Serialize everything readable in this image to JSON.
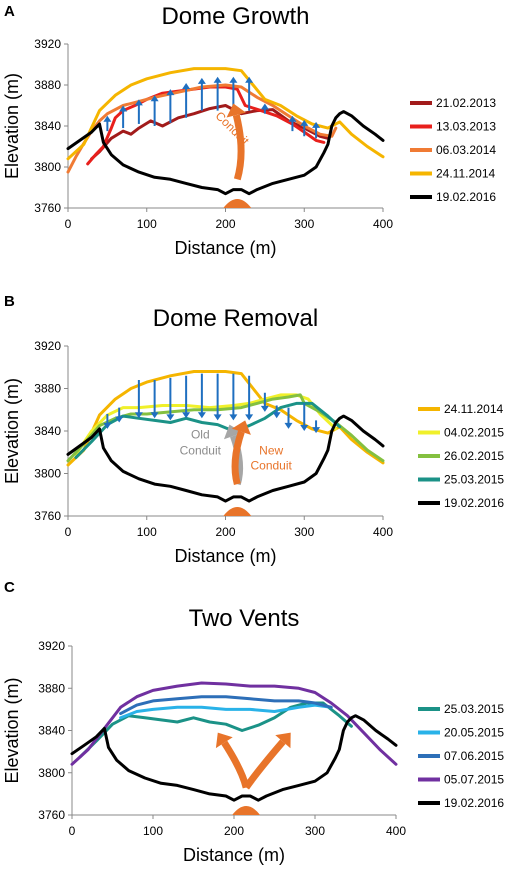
{
  "chart_data": [
    {
      "panel": "A",
      "type": "line",
      "title": "Dome Growth",
      "xlabel": "Distance (m)",
      "ylabel": "Elevation (m)",
      "xlim": [
        0,
        400
      ],
      "ylim": [
        3760,
        3920
      ],
      "xticks": [
        0,
        100,
        200,
        300,
        400
      ],
      "yticks": [
        3760,
        3800,
        3840,
        3880,
        3920
      ],
      "grid": false,
      "legend_position": "right",
      "annotations": [
        {
          "text": "Conduit",
          "x": 205,
          "y": 3835,
          "color": "#e8742a",
          "rotate": 45
        }
      ],
      "arrows": [
        {
          "style": "blue-up",
          "x": [
            50,
            70,
            90,
            110,
            130,
            150,
            170,
            190,
            210,
            230,
            250,
            285,
            300,
            315
          ],
          "from": [
            3835,
            3838,
            3842,
            3840,
            3843,
            3848,
            3855,
            3855,
            3855,
            3855,
            3852,
            3835,
            3830,
            3828
          ],
          "to": [
            3850,
            3860,
            3866,
            3870,
            3876,
            3882,
            3887,
            3888,
            3888,
            3888,
            3862,
            3850,
            3846,
            3844
          ]
        },
        {
          "style": "orange-thick",
          "x": [
            210
          ],
          "from": [
            3788
          ],
          "to": [
            3862
          ]
        }
      ],
      "series": [
        {
          "name": "21.02.2013",
          "color": "#a21b1b",
          "x": [
            30,
            40,
            55,
            70,
            80,
            90,
            105,
            120,
            140,
            160,
            180,
            200,
            210,
            220,
            240,
            260,
            280,
            300,
            320,
            330
          ],
          "y": [
            3808,
            3815,
            3828,
            3835,
            3832,
            3838,
            3845,
            3840,
            3848,
            3852,
            3857,
            3860,
            3856,
            3852,
            3855,
            3856,
            3845,
            3838,
            3830,
            3828
          ]
        },
        {
          "name": "13.03.2013",
          "color": "#e8201c",
          "x": [
            25,
            35,
            45,
            55,
            60,
            70,
            85,
            100,
            120,
            150,
            180,
            200,
            215,
            225,
            245,
            265,
            285,
            300,
            315,
            325
          ],
          "y": [
            3803,
            3812,
            3820,
            3838,
            3848,
            3855,
            3860,
            3866,
            3872,
            3875,
            3878,
            3878,
            3876,
            3860,
            3855,
            3850,
            3842,
            3834,
            3826,
            3824
          ]
        },
        {
          "name": "06.03.2014",
          "color": "#f07b34",
          "x": [
            0,
            10,
            20,
            30,
            40,
            50,
            70,
            90,
            110,
            140,
            170,
            200,
            220,
            240,
            260,
            280,
            300,
            320,
            335,
            340
          ],
          "y": [
            3795,
            3810,
            3823,
            3835,
            3845,
            3852,
            3860,
            3864,
            3868,
            3873,
            3878,
            3880,
            3878,
            3868,
            3860,
            3850,
            3840,
            3832,
            3830,
            3838
          ]
        },
        {
          "name": "24.11.2014",
          "color": "#f5b500",
          "x": [
            0,
            20,
            40,
            60,
            80,
            100,
            130,
            160,
            200,
            220,
            235,
            250,
            270,
            290,
            310,
            330,
            345,
            360,
            380,
            400
          ],
          "y": [
            3808,
            3822,
            3855,
            3870,
            3880,
            3886,
            3892,
            3896,
            3896,
            3894,
            3880,
            3866,
            3860,
            3850,
            3842,
            3838,
            3844,
            3832,
            3820,
            3810
          ]
        },
        {
          "name": "19.02.2016",
          "color": "#000000",
          "x": [
            0,
            15,
            30,
            40,
            45,
            55,
            70,
            90,
            110,
            130,
            150,
            170,
            190,
            200,
            210,
            220,
            230,
            240,
            260,
            280,
            300,
            315,
            325,
            330,
            335,
            340,
            345,
            350,
            360,
            375,
            390,
            400
          ],
          "y": [
            3818,
            3826,
            3834,
            3842,
            3824,
            3812,
            3802,
            3795,
            3790,
            3788,
            3784,
            3780,
            3778,
            3774,
            3778,
            3778,
            3774,
            3778,
            3784,
            3788,
            3792,
            3800,
            3814,
            3822,
            3840,
            3848,
            3852,
            3854,
            3850,
            3840,
            3832,
            3826
          ]
        }
      ]
    },
    {
      "panel": "B",
      "type": "line",
      "title": "Dome Removal",
      "xlabel": "Distance (m)",
      "ylabel": "Elevation (m)",
      "xlim": [
        0,
        400
      ],
      "ylim": [
        3760,
        3920
      ],
      "xticks": [
        0,
        100,
        200,
        300,
        400
      ],
      "yticks": [
        3760,
        3800,
        3840,
        3880,
        3920
      ],
      "grid": false,
      "legend_position": "right",
      "annotations": [
        {
          "text": "Old",
          "x": 168,
          "y": 3833,
          "color": "#8c8c8c",
          "rotate": 0
        },
        {
          "text": "Conduit",
          "x": 168,
          "y": 3818,
          "color": "#8c8c8c",
          "rotate": 0
        },
        {
          "text": "New",
          "x": 258,
          "y": 3818,
          "color": "#e8742a",
          "rotate": 0
        },
        {
          "text": "Conduit",
          "x": 258,
          "y": 3804,
          "color": "#e8742a",
          "rotate": 0
        }
      ],
      "arrows": [
        {
          "style": "blue-down",
          "x": [
            50,
            65,
            90,
            110,
            130,
            150,
            170,
            190,
            210,
            230,
            250,
            265,
            280,
            300,
            315
          ],
          "from": [
            3856,
            3862,
            3888,
            3888,
            3890,
            3892,
            3894,
            3894,
            3894,
            3892,
            3876,
            3864,
            3862,
            3866,
            3850
          ],
          "to": [
            3842,
            3848,
            3852,
            3852,
            3850,
            3852,
            3852,
            3850,
            3850,
            3850,
            3858,
            3852,
            3842,
            3840,
            3838
          ]
        },
        {
          "style": "grey-thick",
          "x": [
            205
          ],
          "from": [
            3790
          ],
          "to": [
            3846
          ]
        },
        {
          "style": "orange-thick",
          "x": [
            225
          ],
          "from": [
            3790
          ],
          "to": [
            3850
          ]
        }
      ],
      "series": [
        {
          "name": "24.11.2014",
          "color": "#f5b500",
          "x": [
            0,
            20,
            40,
            60,
            80,
            100,
            130,
            160,
            200,
            220,
            235,
            250,
            270,
            290,
            310,
            330,
            345,
            360,
            380,
            400
          ],
          "y": [
            3808,
            3822,
            3855,
            3870,
            3880,
            3886,
            3892,
            3896,
            3896,
            3894,
            3880,
            3866,
            3860,
            3850,
            3842,
            3838,
            3844,
            3832,
            3820,
            3810
          ]
        },
        {
          "name": "04.02.2015",
          "color": "#f0f02a",
          "x": [
            10,
            30,
            50,
            70,
            90,
            120,
            150,
            180,
            210,
            230,
            250,
            270,
            290,
            305,
            320,
            340
          ],
          "y": [
            3818,
            3840,
            3855,
            3862,
            3862,
            3864,
            3864,
            3862,
            3864,
            3866,
            3870,
            3874,
            3874,
            3870,
            3856,
            3842
          ]
        },
        {
          "name": "26.02.2015",
          "color": "#84c040",
          "x": [
            0,
            20,
            40,
            60,
            80,
            100,
            130,
            160,
            190,
            220,
            240,
            260,
            280,
            295,
            300,
            320,
            340,
            360,
            380,
            400
          ],
          "y": [
            3812,
            3828,
            3845,
            3852,
            3856,
            3856,
            3858,
            3860,
            3860,
            3862,
            3866,
            3870,
            3872,
            3874,
            3866,
            3858,
            3848,
            3836,
            3822,
            3812
          ]
        },
        {
          "name": "25.03.2015",
          "color": "#1b9287",
          "x": [
            10,
            30,
            50,
            70,
            90,
            110,
            130,
            150,
            170,
            190,
            210,
            230,
            250,
            270,
            290,
            310,
            330,
            345
          ],
          "y": [
            3815,
            3830,
            3846,
            3854,
            3852,
            3850,
            3848,
            3852,
            3848,
            3846,
            3840,
            3845,
            3852,
            3862,
            3866,
            3866,
            3854,
            3844
          ]
        },
        {
          "name": "19.02.2016",
          "color": "#000000",
          "x": [
            0,
            15,
            30,
            40,
            45,
            55,
            70,
            90,
            110,
            130,
            150,
            170,
            190,
            200,
            210,
            220,
            230,
            240,
            260,
            280,
            300,
            315,
            325,
            330,
            335,
            340,
            345,
            350,
            360,
            375,
            390,
            400
          ],
          "y": [
            3818,
            3826,
            3834,
            3842,
            3824,
            3812,
            3802,
            3795,
            3790,
            3788,
            3784,
            3780,
            3778,
            3774,
            3778,
            3778,
            3774,
            3778,
            3784,
            3788,
            3792,
            3800,
            3814,
            3822,
            3840,
            3848,
            3852,
            3854,
            3850,
            3840,
            3832,
            3826
          ]
        }
      ]
    },
    {
      "panel": "C",
      "type": "line",
      "title": "Two Vents",
      "xlabel": "Distance (m)",
      "ylabel": "Elevation (m)",
      "xlim": [
        0,
        400
      ],
      "ylim": [
        3760,
        3920
      ],
      "xticks": [
        0,
        100,
        200,
        300,
        400
      ],
      "yticks": [
        3760,
        3800,
        3840,
        3880,
        3920
      ],
      "grid": false,
      "legend_position": "right",
      "annotations": [],
      "arrows": [
        {
          "style": "orange-thick",
          "x": [
            180
          ],
          "from": [
            3786
          ],
          "to": [
            3838
          ]
        },
        {
          "style": "orange-thick",
          "x": [
            270
          ],
          "from": [
            3786
          ],
          "to": [
            3838
          ]
        }
      ],
      "series": [
        {
          "name": "25.03.2015",
          "color": "#1b9287",
          "x": [
            10,
            30,
            50,
            70,
            90,
            110,
            130,
            150,
            170,
            190,
            210,
            230,
            250,
            270,
            290,
            310,
            330,
            345
          ],
          "y": [
            3815,
            3830,
            3846,
            3854,
            3852,
            3850,
            3848,
            3852,
            3848,
            3846,
            3840,
            3845,
            3852,
            3862,
            3866,
            3866,
            3854,
            3844
          ]
        },
        {
          "name": "20.05.2015",
          "color": "#29b2e8",
          "x": [
            60,
            80,
            100,
            130,
            160,
            190,
            220,
            250,
            280,
            300,
            320
          ],
          "y": [
            3852,
            3858,
            3860,
            3862,
            3862,
            3860,
            3860,
            3858,
            3862,
            3864,
            3862
          ]
        },
        {
          "name": "07.06.2015",
          "color": "#2d6fb8",
          "x": [
            60,
            80,
            100,
            130,
            160,
            190,
            220,
            250,
            280,
            300,
            320
          ],
          "y": [
            3856,
            3864,
            3868,
            3870,
            3872,
            3872,
            3870,
            3868,
            3868,
            3866,
            3862
          ]
        },
        {
          "name": "05.07.2015",
          "color": "#7030a0",
          "x": [
            0,
            20,
            40,
            60,
            80,
            100,
            130,
            160,
            190,
            220,
            250,
            280,
            300,
            320,
            340,
            360,
            380,
            400
          ],
          "y": [
            3808,
            3822,
            3842,
            3862,
            3872,
            3878,
            3882,
            3885,
            3884,
            3882,
            3882,
            3880,
            3876,
            3866,
            3854,
            3838,
            3822,
            3808
          ]
        },
        {
          "name": "19.02.2016",
          "color": "#000000",
          "x": [
            0,
            15,
            30,
            40,
            45,
            55,
            70,
            90,
            110,
            130,
            150,
            170,
            190,
            200,
            210,
            220,
            230,
            240,
            260,
            280,
            300,
            315,
            325,
            330,
            335,
            340,
            345,
            350,
            360,
            375,
            390,
            400
          ],
          "y": [
            3818,
            3826,
            3834,
            3842,
            3824,
            3812,
            3802,
            3795,
            3790,
            3788,
            3784,
            3780,
            3778,
            3774,
            3778,
            3778,
            3774,
            3778,
            3784,
            3788,
            3792,
            3800,
            3814,
            3822,
            3840,
            3848,
            3852,
            3854,
            3850,
            3840,
            3832,
            3826
          ]
        }
      ]
    }
  ]
}
